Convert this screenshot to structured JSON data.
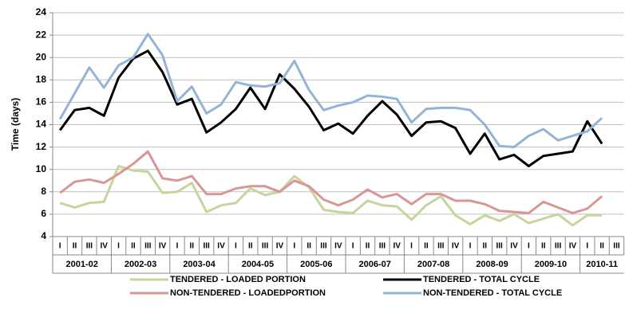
{
  "chart_data": {
    "type": "line",
    "y_label": "Time (days)",
    "ylim": [
      4,
      24
    ],
    "yticks": [
      4,
      6,
      8,
      10,
      12,
      14,
      16,
      18,
      20,
      22,
      24
    ],
    "grid": true,
    "categories": [
      "I",
      "II",
      "III",
      "IV",
      "I",
      "II",
      "III",
      "IV",
      "I",
      "II",
      "III",
      "IV",
      "I",
      "II",
      "III",
      "IV",
      "I",
      "II",
      "III",
      "IV",
      "I",
      "II",
      "III",
      "IV",
      "I",
      "II",
      "III",
      "IV",
      "I",
      "II",
      "III",
      "IV",
      "I",
      "II",
      "III",
      "IV",
      "I",
      "II",
      "III"
    ],
    "year_groups": [
      "2001-02",
      "2002-03",
      "2003-04",
      "2004-05",
      "2005-06",
      "2006-07",
      "2007-08",
      "2008-09",
      "2009-10",
      "2010-11"
    ],
    "series": [
      {
        "name": "TENDERED - LOADED PORTION",
        "color": "#c3d69b",
        "values": [
          7.0,
          6.6,
          7.0,
          7.1,
          10.3,
          9.9,
          9.8,
          7.9,
          8.0,
          8.8,
          6.2,
          6.8,
          7.0,
          8.3,
          7.7,
          8.0,
          9.4,
          8.4,
          6.4,
          6.2,
          6.1,
          7.2,
          6.8,
          6.7,
          5.5,
          6.8,
          7.6,
          5.9,
          5.1,
          5.9,
          5.4,
          6.0,
          5.2,
          5.6,
          6.0,
          5.0,
          5.9,
          5.9,
          null
        ]
      },
      {
        "name": "TENDERED - TOTAL CYCLE",
        "color": "#000000",
        "values": [
          13.5,
          15.3,
          15.5,
          14.8,
          18.2,
          19.9,
          20.6,
          18.7,
          15.8,
          16.3,
          13.3,
          14.2,
          15.4,
          17.3,
          15.4,
          18.5,
          17.2,
          15.6,
          13.5,
          14.1,
          13.2,
          14.8,
          16.1,
          14.9,
          13.0,
          14.2,
          14.3,
          13.7,
          11.4,
          13.2,
          10.9,
          11.3,
          10.3,
          11.2,
          11.4,
          11.6,
          14.3,
          12.3,
          null
        ]
      },
      {
        "name": "NON-TENDERED - LOADEDPORTION",
        "color": "#d99694",
        "values": [
          7.9,
          8.9,
          9.1,
          8.8,
          9.6,
          10.5,
          11.6,
          9.2,
          9.0,
          9.4,
          7.8,
          7.8,
          8.3,
          8.5,
          8.5,
          8.0,
          9.0,
          8.5,
          7.3,
          6.8,
          7.3,
          8.2,
          7.5,
          7.8,
          6.9,
          7.8,
          7.8,
          7.2,
          7.2,
          6.9,
          6.3,
          6.2,
          6.1,
          7.1,
          6.6,
          6.1,
          6.5,
          7.6,
          null
        ]
      },
      {
        "name": "NON-TENDERED - TOTAL CYCLE",
        "color": "#95b3d7",
        "values": [
          14.5,
          16.8,
          19.1,
          17.3,
          19.3,
          20.0,
          22.1,
          20.2,
          16.1,
          17.4,
          15.0,
          15.8,
          17.8,
          17.5,
          17.4,
          17.7,
          19.7,
          17.1,
          15.3,
          15.7,
          16.0,
          16.6,
          16.5,
          16.3,
          14.2,
          15.4,
          15.5,
          15.5,
          15.3,
          14.0,
          12.1,
          12.0,
          13.0,
          13.6,
          12.6,
          13.0,
          13.4,
          14.6,
          null
        ]
      }
    ]
  }
}
